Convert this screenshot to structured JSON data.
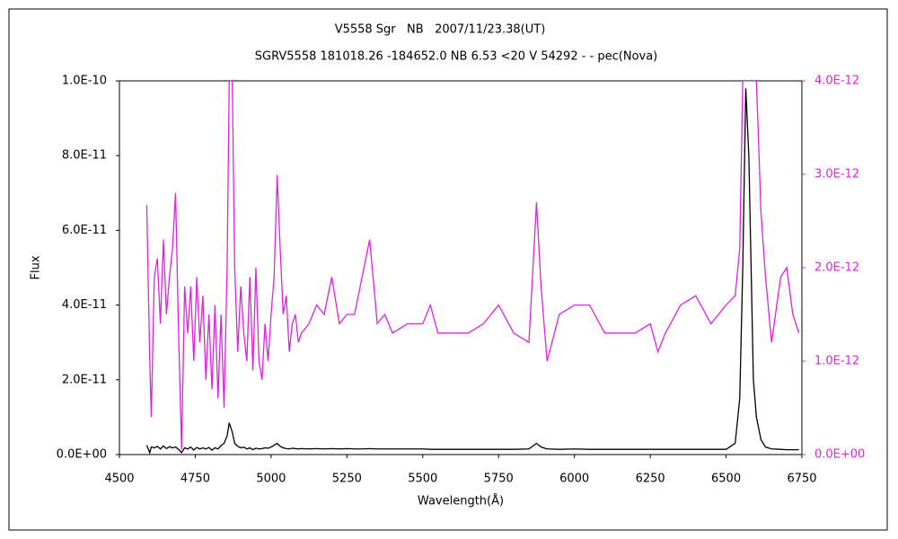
{
  "chart_data": {
    "type": "line",
    "title": "V5558 Sgr   NB   2007/11/23.38(UT)",
    "subtitle": "SGRV5558 181018.26 -184652.0 NB 6.53 <20 V 54292 - - pec(Nova)",
    "x_label": "Wavelength(Å)",
    "y_label": "Flux",
    "xlim": [
      4500,
      6750
    ],
    "xticks": [
      4500,
      4750,
      5000,
      5250,
      5500,
      5750,
      6000,
      6250,
      6500,
      6750
    ],
    "ylim": [
      0,
      1e-10
    ],
    "yticks": [
      {
        "value": 0,
        "label": "0.0E+00"
      },
      {
        "value": 2e-11,
        "label": "2.0E-11"
      },
      {
        "value": 4e-11,
        "label": "4.0E-11"
      },
      {
        "value": 6e-11,
        "label": "6.0E-11"
      },
      {
        "value": 8e-11,
        "label": "8.0E-11"
      },
      {
        "value": 1e-10,
        "label": "1.0E-10"
      }
    ],
    "y2lim": [
      0,
      4e-12
    ],
    "y2ticks": [
      {
        "value": 0,
        "label": "0.0E+00"
      },
      {
        "value": 1e-12,
        "label": "1.0E-12"
      },
      {
        "value": 2e-12,
        "label": "2.0E-12"
      },
      {
        "value": 3e-12,
        "label": "3.0E-12"
      },
      {
        "value": 4e-12,
        "label": "4.0E-12"
      }
    ],
    "y2color": "#e020e0",
    "x": [
      4590,
      4600,
      4605,
      4615,
      4625,
      4635,
      4645,
      4655,
      4665,
      4675,
      4685,
      4695,
      4705,
      4715,
      4725,
      4735,
      4745,
      4755,
      4765,
      4775,
      4785,
      4795,
      4805,
      4815,
      4825,
      4835,
      4845,
      4855,
      4862,
      4872,
      4880,
      4890,
      4900,
      4910,
      4920,
      4930,
      4940,
      4950,
      4960,
      4970,
      4980,
      4990,
      5000,
      5010,
      5020,
      5030,
      5040,
      5050,
      5060,
      5070,
      5080,
      5090,
      5100,
      5125,
      5150,
      5175,
      5200,
      5225,
      5250,
      5275,
      5300,
      5325,
      5350,
      5375,
      5400,
      5450,
      5500,
      5525,
      5550,
      5600,
      5650,
      5700,
      5750,
      5800,
      5850,
      5875,
      5890,
      5910,
      5950,
      6000,
      6050,
      6100,
      6150,
      6200,
      6250,
      6275,
      6300,
      6350,
      6400,
      6450,
      6500,
      6530,
      6545,
      6555,
      6565,
      6575,
      6590,
      6600,
      6615,
      6630,
      6650,
      6680,
      6700,
      6720,
      6740
    ],
    "series": [
      {
        "color": "#000000",
        "values": [
          2.5e-12,
          5e-13,
          2e-12,
          1.8e-12,
          2.2e-12,
          1.5e-12,
          2.3e-12,
          1.6e-12,
          2.1e-12,
          1.8e-12,
          2e-12,
          1.4e-12,
          5e-13,
          1.8e-12,
          1.5e-12,
          2e-12,
          1.2e-12,
          1.9e-12,
          1.5e-12,
          1.8e-12,
          1.5e-12,
          1.9e-12,
          1.2e-12,
          1.8e-12,
          1.5e-12,
          2.4e-12,
          3e-12,
          5e-12,
          8.5e-12,
          6e-12,
          3e-12,
          2.2e-12,
          1.8e-12,
          2e-12,
          1.5e-12,
          1.8e-12,
          1.3e-12,
          1.7e-12,
          1.5e-12,
          1.6e-12,
          1.8e-12,
          1.7e-12,
          2e-12,
          2.5e-12,
          3e-12,
          2.2e-12,
          1.8e-12,
          1.6e-12,
          1.5e-12,
          1.7e-12,
          1.6e-12,
          1.5e-12,
          1.6e-12,
          1.5e-12,
          1.6e-12,
          1.5e-12,
          1.6e-12,
          1.5e-12,
          1.6e-12,
          1.5e-12,
          1.5e-12,
          1.6e-12,
          1.5e-12,
          1.5e-12,
          1.5e-12,
          1.5e-12,
          1.5e-12,
          1.4e-12,
          1.4e-12,
          1.4e-12,
          1.4e-12,
          1.4e-12,
          1.4e-12,
          1.4e-12,
          1.5e-12,
          3e-12,
          2e-12,
          1.5e-12,
          1.4e-12,
          1.5e-12,
          1.4e-12,
          1.4e-12,
          1.4e-12,
          1.4e-12,
          1.4e-12,
          1.4e-12,
          1.4e-12,
          1.4e-12,
          1.4e-12,
          1.4e-12,
          1.4e-12,
          3e-12,
          1.5e-11,
          5e-11,
          9.8e-11,
          8e-11,
          2e-11,
          1e-11,
          4e-12,
          2e-12,
          1.5e-12,
          1.4e-12,
          1.3e-12,
          1.3e-12,
          1.3e-12
        ]
      },
      {
        "color": "#e020e0",
        "axis": "y2",
        "values": [
          2.67e-12,
          1e-12,
          4e-13,
          1.9e-12,
          2.1e-12,
          1.4e-12,
          2.3e-12,
          1.5e-12,
          1.9e-12,
          2.2e-12,
          2.8e-12,
          1.3e-12,
          5e-14,
          1.8e-12,
          1.3e-12,
          1.8e-12,
          1e-12,
          1.9e-12,
          1.2e-12,
          1.7e-12,
          8e-13,
          1.5e-12,
          7e-13,
          1.6e-12,
          6e-13,
          1.5e-12,
          5e-13,
          2e-12,
          4e-12,
          4e-12,
          2e-12,
          1.1e-12,
          1.8e-12,
          1.3e-12,
          1e-12,
          1.9e-12,
          9e-13,
          2e-12,
          1e-12,
          8e-13,
          1.4e-12,
          1e-12,
          1.5e-12,
          1.9e-12,
          2.99e-12,
          2.2e-12,
          1.5e-12,
          1.7e-12,
          1.1e-12,
          1.4e-12,
          1.5e-12,
          1.2e-12,
          1.3e-12,
          1.4e-12,
          1.6e-12,
          1.5e-12,
          1.9e-12,
          1.4e-12,
          1.5e-12,
          1.5e-12,
          1.9e-12,
          2.3e-12,
          1.4e-12,
          1.5e-12,
          1.3e-12,
          1.4e-12,
          1.4e-12,
          1.6e-12,
          1.3e-12,
          1.3e-12,
          1.3e-12,
          1.4e-12,
          1.6e-12,
          1.3e-12,
          1.2e-12,
          2.7e-12,
          1.8e-12,
          1e-12,
          1.5e-12,
          1.6e-12,
          1.6e-12,
          1.3e-12,
          1.3e-12,
          1.3e-12,
          1.4e-12,
          1.1e-12,
          1.3e-12,
          1.6e-12,
          1.7e-12,
          1.4e-12,
          1.6e-12,
          1.7e-12,
          2.2e-12,
          4e-12,
          4e-12,
          4e-12,
          4e-12,
          4e-12,
          2.6e-12,
          1.9e-12,
          1.2e-12,
          1.9e-12,
          2e-12,
          1.5e-12,
          1.3e-12
        ]
      }
    ]
  }
}
